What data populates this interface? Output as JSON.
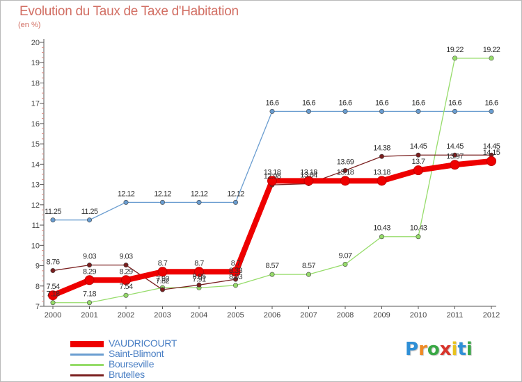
{
  "header": {
    "title": "Evolution du Taux de Taxe d'Habitation",
    "subtitle": "(en %)"
  },
  "logo": {
    "text": "Proxiti",
    "letters": [
      "P",
      "r",
      "o",
      "x",
      "i",
      "t",
      "i"
    ],
    "colors": [
      "#2f8fd6",
      "#f08a24",
      "#39a845",
      "#d8342b",
      "#e8c21f",
      "#2f8fd6",
      "#39a845"
    ]
  },
  "colors": {
    "title": "#d26f64",
    "axis": "#555555",
    "legend_text": "#4a7fc4"
  },
  "chart_data": {
    "type": "line",
    "title": "Evolution du Taux de Taxe d'Habitation",
    "ylabel": "(en %)",
    "xlabel": "",
    "x": [
      "2000",
      "2001",
      "2002",
      "2003",
      "2004",
      "2005",
      "2006",
      "2007",
      "2008",
      "2009",
      "2010",
      "2011",
      "2012"
    ],
    "ylim": [
      7,
      20
    ],
    "yticks": [
      "7",
      "8",
      "9",
      "10",
      "11",
      "12",
      "13",
      "14",
      "15",
      "16",
      "17",
      "18",
      "19",
      "20"
    ],
    "grid": false,
    "legend_position": "bottom-left",
    "series": [
      {
        "name": "VAUDRICOURT",
        "color": "#ee0000",
        "emphasis": true,
        "values": [
          7.54,
          8.29,
          8.29,
          8.7,
          8.7,
          8.7,
          13.18,
          13.18,
          13.18,
          13.18,
          13.7,
          13.97,
          14.15
        ],
        "labels": [
          "7.54",
          "8.29",
          "8.29",
          "8.7",
          "8.7",
          "8.7",
          "13.18",
          "13.18",
          "13.18",
          "13.18",
          "13.7",
          "13.97",
          "14.15"
        ]
      },
      {
        "name": "Saint-Blimont",
        "color": "#6a9dd0",
        "emphasis": false,
        "values": [
          11.25,
          11.25,
          12.12,
          12.12,
          12.12,
          12.12,
          16.6,
          16.6,
          16.6,
          16.6,
          16.6,
          16.6,
          16.6
        ],
        "labels": [
          "11.25",
          "11.25",
          "12.12",
          "12.12",
          "12.12",
          "12.12",
          "16.6",
          "16.6",
          "16.6",
          "16.6",
          "16.6",
          "16.6",
          "16.6"
        ]
      },
      {
        "name": "Bourseville",
        "color": "#96dc6a",
        "emphasis": false,
        "values": [
          7.18,
          7.18,
          7.54,
          7.92,
          7.91,
          8.03,
          8.57,
          8.57,
          9.07,
          10.43,
          10.43,
          19.22,
          19.22
        ],
        "labels": [
          "7.18",
          "7.18",
          "7.54",
          "7.92",
          "7.91",
          "8.03",
          "8.57",
          "8.57",
          "9.07",
          "10.43",
          "10.43",
          "19.22",
          "19.22"
        ]
      },
      {
        "name": "Brutelles",
        "color": "#7a1f1f",
        "emphasis": false,
        "values": [
          8.76,
          9.03,
          9.03,
          7.82,
          8.05,
          8.33,
          12.98,
          13.04,
          13.69,
          14.38,
          14.45,
          14.45,
          14.45
        ],
        "labels": [
          "8.76",
          "9.03",
          "9.03",
          "7.82",
          "8.05",
          "8.33",
          "12.98",
          "13.04",
          "13.69",
          "14.38",
          "14.45",
          "14.45",
          "14.45"
        ]
      }
    ]
  }
}
